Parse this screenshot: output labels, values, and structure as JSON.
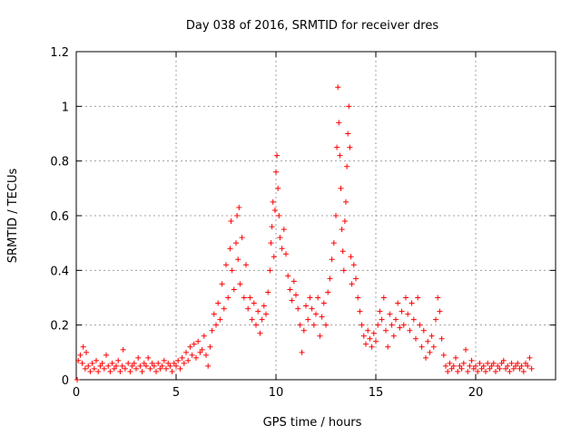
{
  "chart_data": {
    "type": "scatter",
    "title": "Day 038 of 2016, SRMTID for receiver dres",
    "xlabel": "GPS time / hours",
    "ylabel": "SRMTID / TECUs",
    "xlim": [
      0,
      24
    ],
    "ylim": [
      0,
      1.2
    ],
    "xticks": [
      0,
      5,
      10,
      15,
      20
    ],
    "xtick_labels": [
      "0",
      "5",
      "10",
      "15",
      "20"
    ],
    "yticks": [
      0,
      0.2,
      0.4,
      0.6,
      0.8,
      1.0,
      1.2
    ],
    "ytick_labels": [
      "0",
      "0.2",
      "0.4",
      "0.6",
      "0.8",
      "1",
      "1.2"
    ],
    "grid": true,
    "marker": "+",
    "marker_color": "#ff0000",
    "series": [
      {
        "name": "SRMTID",
        "points": [
          [
            0.05,
            0.0
          ],
          [
            0.1,
            0.07
          ],
          [
            0.2,
            0.09
          ],
          [
            0.3,
            0.06
          ],
          [
            0.35,
            0.12
          ],
          [
            0.45,
            0.04
          ],
          [
            0.5,
            0.1
          ],
          [
            0.6,
            0.05
          ],
          [
            0.7,
            0.03
          ],
          [
            0.8,
            0.06
          ],
          [
            0.9,
            0.04
          ],
          [
            1.0,
            0.07
          ],
          [
            1.1,
            0.03
          ],
          [
            1.2,
            0.05
          ],
          [
            1.3,
            0.06
          ],
          [
            1.4,
            0.04
          ],
          [
            1.5,
            0.09
          ],
          [
            1.6,
            0.05
          ],
          [
            1.7,
            0.03
          ],
          [
            1.8,
            0.06
          ],
          [
            1.9,
            0.04
          ],
          [
            2.0,
            0.05
          ],
          [
            2.1,
            0.07
          ],
          [
            2.2,
            0.03
          ],
          [
            2.3,
            0.05
          ],
          [
            2.35,
            0.11
          ],
          [
            2.45,
            0.04
          ],
          [
            2.6,
            0.06
          ],
          [
            2.7,
            0.03
          ],
          [
            2.8,
            0.05
          ],
          [
            2.9,
            0.06
          ],
          [
            3.0,
            0.04
          ],
          [
            3.1,
            0.08
          ],
          [
            3.2,
            0.05
          ],
          [
            3.3,
            0.03
          ],
          [
            3.4,
            0.06
          ],
          [
            3.5,
            0.05
          ],
          [
            3.6,
            0.08
          ],
          [
            3.7,
            0.04
          ],
          [
            3.8,
            0.06
          ],
          [
            3.9,
            0.05
          ],
          [
            4.0,
            0.03
          ],
          [
            4.1,
            0.06
          ],
          [
            4.2,
            0.04
          ],
          [
            4.3,
            0.05
          ],
          [
            4.4,
            0.07
          ],
          [
            4.5,
            0.04
          ],
          [
            4.6,
            0.06
          ],
          [
            4.7,
            0.05
          ],
          [
            4.8,
            0.03
          ],
          [
            4.9,
            0.06
          ],
          [
            5.0,
            0.05
          ],
          [
            5.1,
            0.07
          ],
          [
            5.2,
            0.04
          ],
          [
            5.3,
            0.08
          ],
          [
            5.4,
            0.06
          ],
          [
            5.5,
            0.1
          ],
          [
            5.6,
            0.07
          ],
          [
            5.7,
            0.12
          ],
          [
            5.8,
            0.09
          ],
          [
            5.9,
            0.13
          ],
          [
            6.0,
            0.08
          ],
          [
            6.1,
            0.14
          ],
          [
            6.2,
            0.1
          ],
          [
            6.3,
            0.11
          ],
          [
            6.4,
            0.16
          ],
          [
            6.5,
            0.09
          ],
          [
            6.6,
            0.05
          ],
          [
            6.7,
            0.12
          ],
          [
            6.8,
            0.18
          ],
          [
            6.9,
            0.24
          ],
          [
            7.0,
            0.2
          ],
          [
            7.1,
            0.28
          ],
          [
            7.2,
            0.22
          ],
          [
            7.3,
            0.35
          ],
          [
            7.4,
            0.26
          ],
          [
            7.5,
            0.42
          ],
          [
            7.6,
            0.3
          ],
          [
            7.7,
            0.48
          ],
          [
            7.75,
            0.58
          ],
          [
            7.8,
            0.4
          ],
          [
            7.9,
            0.33
          ],
          [
            8.0,
            0.5
          ],
          [
            8.05,
            0.6
          ],
          [
            8.1,
            0.44
          ],
          [
            8.15,
            0.63
          ],
          [
            8.2,
            0.35
          ],
          [
            8.3,
            0.52
          ],
          [
            8.4,
            0.3
          ],
          [
            8.5,
            0.42
          ],
          [
            8.6,
            0.26
          ],
          [
            8.7,
            0.3
          ],
          [
            8.8,
            0.22
          ],
          [
            8.9,
            0.28
          ],
          [
            9.0,
            0.2
          ],
          [
            9.1,
            0.25
          ],
          [
            9.2,
            0.17
          ],
          [
            9.3,
            0.22
          ],
          [
            9.4,
            0.27
          ],
          [
            9.5,
            0.24
          ],
          [
            9.6,
            0.32
          ],
          [
            9.7,
            0.4
          ],
          [
            9.75,
            0.5
          ],
          [
            9.8,
            0.56
          ],
          [
            9.85,
            0.65
          ],
          [
            9.9,
            0.45
          ],
          [
            9.95,
            0.62
          ],
          [
            10.0,
            0.76
          ],
          [
            10.05,
            0.82
          ],
          [
            10.1,
            0.7
          ],
          [
            10.15,
            0.6
          ],
          [
            10.2,
            0.52
          ],
          [
            10.3,
            0.48
          ],
          [
            10.4,
            0.55
          ],
          [
            10.5,
            0.46
          ],
          [
            10.6,
            0.38
          ],
          [
            10.7,
            0.33
          ],
          [
            10.8,
            0.29
          ],
          [
            10.9,
            0.36
          ],
          [
            11.0,
            0.31
          ],
          [
            11.1,
            0.26
          ],
          [
            11.2,
            0.2
          ],
          [
            11.3,
            0.1
          ],
          [
            11.4,
            0.18
          ],
          [
            11.5,
            0.27
          ],
          [
            11.6,
            0.22
          ],
          [
            11.7,
            0.3
          ],
          [
            11.8,
            0.26
          ],
          [
            11.9,
            0.2
          ],
          [
            12.0,
            0.24
          ],
          [
            12.1,
            0.3
          ],
          [
            12.2,
            0.16
          ],
          [
            12.3,
            0.23
          ],
          [
            12.4,
            0.28
          ],
          [
            12.5,
            0.2
          ],
          [
            12.6,
            0.32
          ],
          [
            12.7,
            0.37
          ],
          [
            12.8,
            0.44
          ],
          [
            12.9,
            0.5
          ],
          [
            13.0,
            0.6
          ],
          [
            13.05,
            0.85
          ],
          [
            13.1,
            1.07
          ],
          [
            13.15,
            0.94
          ],
          [
            13.2,
            0.82
          ],
          [
            13.25,
            0.7
          ],
          [
            13.3,
            0.55
          ],
          [
            13.35,
            0.47
          ],
          [
            13.4,
            0.4
          ],
          [
            13.45,
            0.58
          ],
          [
            13.5,
            0.65
          ],
          [
            13.55,
            0.78
          ],
          [
            13.6,
            0.9
          ],
          [
            13.65,
            1.0
          ],
          [
            13.7,
            0.85
          ],
          [
            13.75,
            0.45
          ],
          [
            13.8,
            0.35
          ],
          [
            13.9,
            0.42
          ],
          [
            14.0,
            0.37
          ],
          [
            14.1,
            0.3
          ],
          [
            14.2,
            0.25
          ],
          [
            14.3,
            0.2
          ],
          [
            14.4,
            0.16
          ],
          [
            14.5,
            0.13
          ],
          [
            14.6,
            0.18
          ],
          [
            14.7,
            0.15
          ],
          [
            14.8,
            0.12
          ],
          [
            14.9,
            0.17
          ],
          [
            15.0,
            0.14
          ],
          [
            15.1,
            0.2
          ],
          [
            15.2,
            0.25
          ],
          [
            15.3,
            0.22
          ],
          [
            15.4,
            0.3
          ],
          [
            15.5,
            0.18
          ],
          [
            15.6,
            0.12
          ],
          [
            15.7,
            0.24
          ],
          [
            15.8,
            0.2
          ],
          [
            15.9,
            0.16
          ],
          [
            16.0,
            0.22
          ],
          [
            16.1,
            0.28
          ],
          [
            16.2,
            0.19
          ],
          [
            16.3,
            0.25
          ],
          [
            16.4,
            0.2
          ],
          [
            16.5,
            0.3
          ],
          [
            16.6,
            0.24
          ],
          [
            16.7,
            0.18
          ],
          [
            16.8,
            0.28
          ],
          [
            16.9,
            0.22
          ],
          [
            17.0,
            0.15
          ],
          [
            17.1,
            0.3
          ],
          [
            17.2,
            0.2
          ],
          [
            17.3,
            0.12
          ],
          [
            17.4,
            0.18
          ],
          [
            17.5,
            0.08
          ],
          [
            17.6,
            0.14
          ],
          [
            17.7,
            0.1
          ],
          [
            17.8,
            0.16
          ],
          [
            17.9,
            0.12
          ],
          [
            18.0,
            0.22
          ],
          [
            18.1,
            0.3
          ],
          [
            18.2,
            0.25
          ],
          [
            18.3,
            0.15
          ],
          [
            18.4,
            0.09
          ],
          [
            18.5,
            0.05
          ],
          [
            18.6,
            0.03
          ],
          [
            18.7,
            0.06
          ],
          [
            18.8,
            0.04
          ],
          [
            18.9,
            0.05
          ],
          [
            19.0,
            0.08
          ],
          [
            19.1,
            0.03
          ],
          [
            19.2,
            0.05
          ],
          [
            19.3,
            0.04
          ],
          [
            19.4,
            0.06
          ],
          [
            19.5,
            0.11
          ],
          [
            19.6,
            0.03
          ],
          [
            19.7,
            0.05
          ],
          [
            19.8,
            0.07
          ],
          [
            19.9,
            0.04
          ],
          [
            20.0,
            0.05
          ],
          [
            20.1,
            0.03
          ],
          [
            20.2,
            0.06
          ],
          [
            20.3,
            0.04
          ],
          [
            20.4,
            0.05
          ],
          [
            20.5,
            0.03
          ],
          [
            20.6,
            0.06
          ],
          [
            20.7,
            0.04
          ],
          [
            20.8,
            0.05
          ],
          [
            20.9,
            0.06
          ],
          [
            21.0,
            0.03
          ],
          [
            21.1,
            0.05
          ],
          [
            21.2,
            0.04
          ],
          [
            21.3,
            0.06
          ],
          [
            21.4,
            0.07
          ],
          [
            21.5,
            0.04
          ],
          [
            21.6,
            0.05
          ],
          [
            21.7,
            0.03
          ],
          [
            21.8,
            0.06
          ],
          [
            21.9,
            0.04
          ],
          [
            22.0,
            0.05
          ],
          [
            22.1,
            0.06
          ],
          [
            22.2,
            0.04
          ],
          [
            22.3,
            0.05
          ],
          [
            22.4,
            0.03
          ],
          [
            22.5,
            0.06
          ],
          [
            22.6,
            0.05
          ],
          [
            22.7,
            0.08
          ],
          [
            22.8,
            0.04
          ]
        ]
      }
    ]
  }
}
